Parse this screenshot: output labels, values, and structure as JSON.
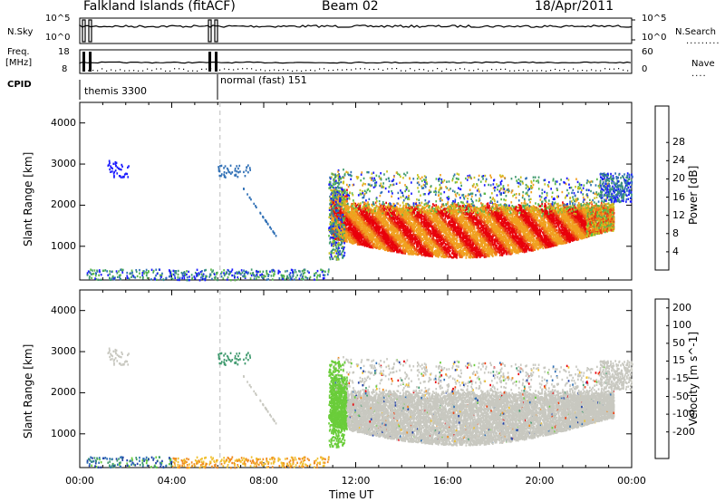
{
  "header": {
    "radar": "Falkland Islands (fitACF)",
    "beam": "Beam 02",
    "date": "18/Apr/2011"
  },
  "top_panels": {
    "nsky_label": "N.Sky",
    "nsky_ticks": [
      "10^5",
      "10^0"
    ],
    "nsearch_label": "N.Search",
    "nsearch_ticks": [
      "10^5",
      "10^0"
    ],
    "freq_label": "Freq.",
    "freq_unit": "[MHz]",
    "freq_ticks": [
      "18",
      "8"
    ],
    "nave_label": "Nave",
    "nave_ticks": [
      "60",
      "0"
    ],
    "cpid_label": "CPID",
    "cpid_modes": [
      "themis 3300",
      "normal (fast) 151"
    ]
  },
  "chart_data": [
    {
      "type": "heatmap",
      "name": "power",
      "ylabel": "Slant Range [km]",
      "xlabel": "Time UT",
      "x_ticks": [
        "00:00",
        "04:00",
        "08:00",
        "12:00",
        "16:00",
        "20:00",
        "00:00"
      ],
      "y_ticks": [
        "1000",
        "2000",
        "3000",
        "4000"
      ],
      "xlim_hours": [
        0,
        24
      ],
      "ylim_km": [
        180,
        4500
      ],
      "colorbar": {
        "label": "Power [dB]",
        "ticks": [
          "4",
          "8",
          "12",
          "16",
          "20",
          "24",
          "28"
        ],
        "colors": [
          "#1a1aff",
          "#2f6fb5",
          "#3f9a6e",
          "#5ab84a",
          "#c9c21e",
          "#f0a020",
          "#f07018",
          "#e83a14",
          "#e8000a"
        ]
      },
      "features": [
        {
          "desc": "main echo band",
          "t_hours": [
            10.9,
            23.0
          ],
          "range_km": [
            700,
            2000
          ],
          "power_db": [
            16,
            30
          ]
        },
        {
          "desc": "near-range ground scatter",
          "t_hours": [
            0.2,
            10.5
          ],
          "range_km": [
            200,
            450
          ],
          "power_db": [
            4,
            12
          ]
        }
      ]
    },
    {
      "type": "heatmap",
      "name": "velocity",
      "ylabel": "Slant Range [km]",
      "xlabel": "Time UT",
      "x_ticks": [
        "00:00",
        "04:00",
        "08:00",
        "12:00",
        "16:00",
        "20:00",
        "00:00"
      ],
      "y_ticks": [
        "1000",
        "2000",
        "3000",
        "4000"
      ],
      "xlim_hours": [
        0,
        24
      ],
      "ylim_km": [
        180,
        4500
      ],
      "colorbar": {
        "label": "Velocity [m s^-1]",
        "ticks": [
          "200",
          "100",
          "50",
          "15",
          "-15",
          "-50",
          "-100",
          "-200"
        ],
        "colors": [
          "#1f3fa8",
          "#2f6fb5",
          "#3f9a6e",
          "#6acd3a",
          "#c8c8c0",
          "#f0c030",
          "#f08c20",
          "#f04010",
          "#e8000a"
        ]
      },
      "features": [
        {
          "desc": "ground scatter (grey)",
          "t_hours": [
            11.5,
            24.0
          ],
          "range_km": [
            700,
            2600
          ],
          "velocity": "ground"
        },
        {
          "desc": "green streak",
          "t_hours": [
            10.9,
            11.6
          ],
          "range_km": [
            1000,
            2800
          ],
          "velocity_ms": [
            15,
            50
          ]
        },
        {
          "desc": "near-range scatter",
          "t_hours": [
            4.0,
            11.0
          ],
          "range_km": [
            200,
            450
          ],
          "velocity_ms": [
            -50,
            -15
          ]
        }
      ]
    }
  ],
  "xaxis_title": "Time UT"
}
